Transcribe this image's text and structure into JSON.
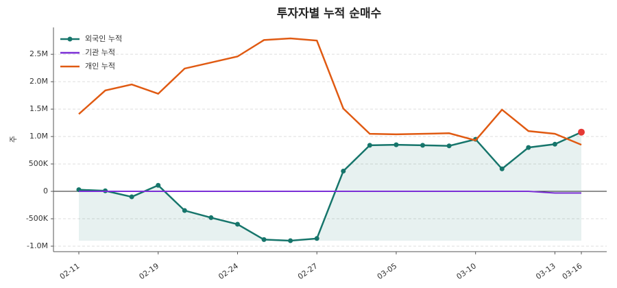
{
  "chart_data": {
    "type": "line",
    "title": "투자자별 누적 순매수",
    "y_label": "주",
    "categories": [
      "02-11",
      null,
      null,
      "02-19",
      null,
      null,
      "02-24",
      null,
      null,
      "02-27",
      null,
      null,
      "03-05",
      null,
      null,
      "03-10",
      null,
      null,
      "03-13",
      "03-16"
    ],
    "series": [
      {
        "name": "외국인 누적",
        "color": "#16756b",
        "values": [
          30000,
          10000,
          -100000,
          110000,
          -350000,
          -480000,
          -600000,
          -880000,
          -900000,
          -860000,
          370000,
          840000,
          850000,
          840000,
          830000,
          950000,
          410000,
          800000,
          860000,
          1080000
        ]
      },
      {
        "name": "기관 누적",
        "color": "#7b2fd6",
        "values": [
          0,
          0,
          0,
          0,
          0,
          0,
          0,
          0,
          0,
          0,
          0,
          0,
          0,
          0,
          0,
          0,
          0,
          0,
          -30000,
          -30000
        ]
      },
      {
        "name": "개인 누적",
        "color": "#e05a12",
        "values": [
          1410000,
          1840000,
          1950000,
          1780000,
          2240000,
          2350000,
          2460000,
          2760000,
          2790000,
          2750000,
          1510000,
          1050000,
          1040000,
          1050000,
          1060000,
          930000,
          1490000,
          1100000,
          1050000,
          850000
        ]
      }
    ],
    "ylim": [
      -1100000,
      2990000
    ],
    "yticks": [
      {
        "value": -1000000,
        "label": "-1.0M"
      },
      {
        "value": -500000,
        "label": "-500K"
      },
      0,
      {
        "value": 500000,
        "label": "500K"
      },
      {
        "value": 1000000,
        "label": "1.0M"
      },
      {
        "value": 1500000,
        "label": "1.5M"
      },
      {
        "value": 2000000,
        "label": "2.0M"
      },
      {
        "value": 2500000,
        "label": "2.5M"
      }
    ],
    "grid": true,
    "legend": "upper-left"
  }
}
